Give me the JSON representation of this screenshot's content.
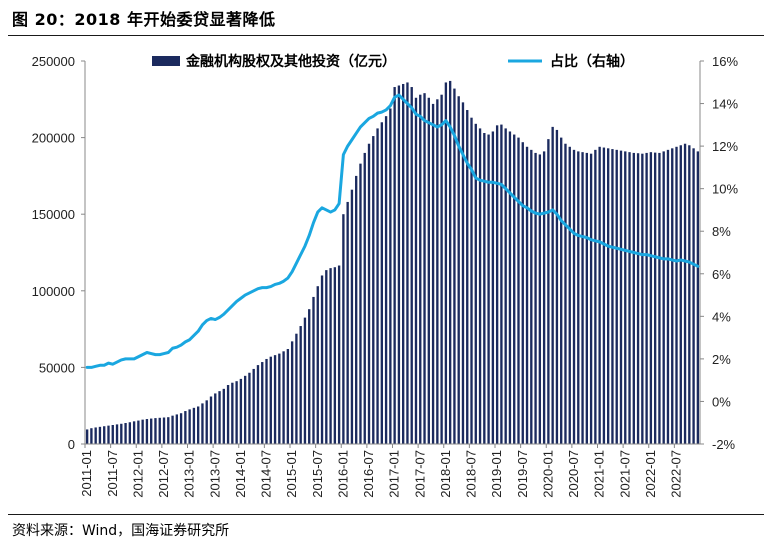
{
  "figure": {
    "title": "图 20：2018 年开始委贷显著降低",
    "source": "资料来源：Wind，国海证券研究所"
  },
  "colors": {
    "bar": "#1b2a5e",
    "line": "#1aa7e0",
    "axis": "#888888"
  },
  "chart_data": {
    "type": "bar+line",
    "title": "2018 年开始委贷显著降低",
    "xlabel": "",
    "ylabel": "",
    "y_left": {
      "min": 0,
      "max": 250000,
      "ticks": [
        "0",
        "50000",
        "100000",
        "150000",
        "200000",
        "250000"
      ]
    },
    "y_right": {
      "min": -2,
      "max": 16,
      "ticks": [
        "-2%",
        "0%",
        "2%",
        "4%",
        "6%",
        "8%",
        "10%",
        "12%",
        "14%",
        "16%"
      ]
    },
    "x_tick_labels": [
      "2011-01",
      "2011-07",
      "2012-01",
      "2012-07",
      "2013-01",
      "2013-07",
      "2014-01",
      "2014-07",
      "2015-01",
      "2015-07",
      "2016-01",
      "2016-07",
      "2017-01",
      "2017-07",
      "2018-01",
      "2018-07",
      "2019-01",
      "2019-07",
      "2020-01",
      "2020-07",
      "2021-01",
      "2021-07",
      "2022-01",
      "2022-07"
    ],
    "legend": {
      "position": "top",
      "entries": [
        "金融机构股权及其他投资（亿元）",
        "占比（右轴）"
      ]
    },
    "categories_start": "2011-01",
    "categories_end": "2022-12",
    "series": [
      {
        "name": "金融机构股权及其他投资（亿元）",
        "type": "bar",
        "axis": "left",
        "values": [
          9500,
          10300,
          10800,
          11200,
          11600,
          12000,
          12400,
          12800,
          13200,
          13700,
          14200,
          14800,
          15300,
          15900,
          16300,
          16600,
          16900,
          17100,
          17300,
          17500,
          18500,
          19300,
          20100,
          21500,
          22600,
          23600,
          24500,
          26500,
          28500,
          31000,
          33000,
          34500,
          36000,
          38500,
          40000,
          41000,
          42500,
          44500,
          46500,
          49000,
          51500,
          53500,
          55500,
          57000,
          58000,
          59000,
          60500,
          62000,
          67000,
          72000,
          77000,
          82500,
          88000,
          96000,
          103000,
          110000,
          113500,
          114800,
          115400,
          116500,
          150000,
          158000,
          166000,
          175000,
          183000,
          190000,
          196000,
          201000,
          206000,
          210000,
          214000,
          219000,
          233000,
          234000,
          235000,
          236000,
          233000,
          226000,
          228000,
          229000,
          226000,
          222000,
          225000,
          228000,
          236000,
          237000,
          232000,
          227000,
          223000,
          218000,
          213000,
          209000,
          206000,
          203000,
          202000,
          204000,
          208000,
          208500,
          206000,
          204000,
          202000,
          200000,
          197000,
          194000,
          192000,
          190000,
          189000,
          191000,
          199000,
          207000,
          205000,
          200000,
          196000,
          194000,
          192000,
          191000,
          190500,
          190000,
          189500,
          192000,
          194000,
          193500,
          193000,
          192500,
          192000,
          191500,
          191000,
          190500,
          190000,
          189800,
          189500,
          190000,
          190500,
          190200,
          190000,
          191000,
          192000,
          193000,
          194000,
          195000,
          196000,
          195000,
          193000,
          191000
        ]
      },
      {
        "name": "占比（右轴）",
        "type": "line",
        "axis": "right",
        "values": [
          1.6,
          1.6,
          1.65,
          1.7,
          1.7,
          1.8,
          1.75,
          1.85,
          1.95,
          2.0,
          2.0,
          2.0,
          2.1,
          2.2,
          2.3,
          2.25,
          2.2,
          2.2,
          2.25,
          2.3,
          2.5,
          2.55,
          2.65,
          2.8,
          2.9,
          3.1,
          3.3,
          3.6,
          3.8,
          3.9,
          3.85,
          3.95,
          4.1,
          4.3,
          4.5,
          4.7,
          4.85,
          5.0,
          5.1,
          5.2,
          5.3,
          5.35,
          5.35,
          5.4,
          5.5,
          5.55,
          5.65,
          5.8,
          6.1,
          6.5,
          6.9,
          7.3,
          7.8,
          8.4,
          8.9,
          9.1,
          9.0,
          8.9,
          9.0,
          9.3,
          11.6,
          12.0,
          12.3,
          12.6,
          12.9,
          13.1,
          13.3,
          13.4,
          13.55,
          13.6,
          13.7,
          13.9,
          14.3,
          14.4,
          14.2,
          14.0,
          13.8,
          13.5,
          13.4,
          13.2,
          13.1,
          13.0,
          12.9,
          13.0,
          13.2,
          12.9,
          12.5,
          12.0,
          11.6,
          11.2,
          10.9,
          10.5,
          10.4,
          10.35,
          10.3,
          10.3,
          10.25,
          10.2,
          10.0,
          9.8,
          9.6,
          9.4,
          9.2,
          9.1,
          8.95,
          8.85,
          8.8,
          8.85,
          8.9,
          9.0,
          8.8,
          8.5,
          8.3,
          8.1,
          7.9,
          7.8,
          7.75,
          7.7,
          7.6,
          7.55,
          7.5,
          7.4,
          7.3,
          7.25,
          7.2,
          7.15,
          7.1,
          7.05,
          7.0,
          6.95,
          6.9,
          6.9,
          6.85,
          6.8,
          6.75,
          6.7,
          6.7,
          6.65,
          6.6,
          6.65,
          6.6,
          6.55,
          6.45,
          6.35
        ]
      }
    ]
  }
}
